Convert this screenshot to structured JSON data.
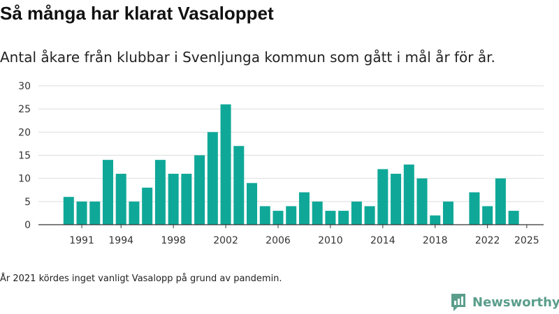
{
  "title": "Så många har klarat Vasaloppet",
  "subtitle": "Antal åkare från klubbar i Svenljunga kommun som gått i mål år för år.",
  "footnote": "År 2021 kördes inget vanligt Vasalopp på grund av pandemin.",
  "brand": {
    "name": "Newsworthy",
    "icon": "newsworthy-logo-icon",
    "color": "#5a9e8b"
  },
  "colors": {
    "bar": "#0fa898",
    "grid": "#dddddd",
    "axis": "#333333"
  },
  "chart_data": {
    "type": "bar",
    "title": "Så många har klarat Vasaloppet",
    "xlabel": "",
    "ylabel": "",
    "categories": [
      1990,
      1991,
      1992,
      1993,
      1994,
      1995,
      1996,
      1997,
      1998,
      1999,
      2000,
      2001,
      2002,
      2003,
      2004,
      2005,
      2006,
      2007,
      2008,
      2009,
      2010,
      2011,
      2012,
      2013,
      2014,
      2015,
      2016,
      2017,
      2018,
      2019,
      2020,
      2021,
      2022,
      2023,
      2024,
      2025
    ],
    "values": [
      6,
      5,
      5,
      14,
      11,
      5,
      8,
      14,
      11,
      11,
      15,
      20,
      26,
      17,
      9,
      4,
      3,
      4,
      7,
      5,
      3,
      3,
      5,
      4,
      12,
      11,
      13,
      10,
      2,
      5,
      null,
      7,
      4,
      10,
      3,
      null
    ],
    "x_tick_labels": [
      "1991",
      "1994",
      "1998",
      "2002",
      "2006",
      "2010",
      "2014",
      "2018",
      "2022",
      "2025"
    ],
    "y_ticks": [
      0,
      5,
      10,
      15,
      20,
      25,
      30
    ],
    "ylim": [
      0,
      30
    ],
    "grid": true
  }
}
